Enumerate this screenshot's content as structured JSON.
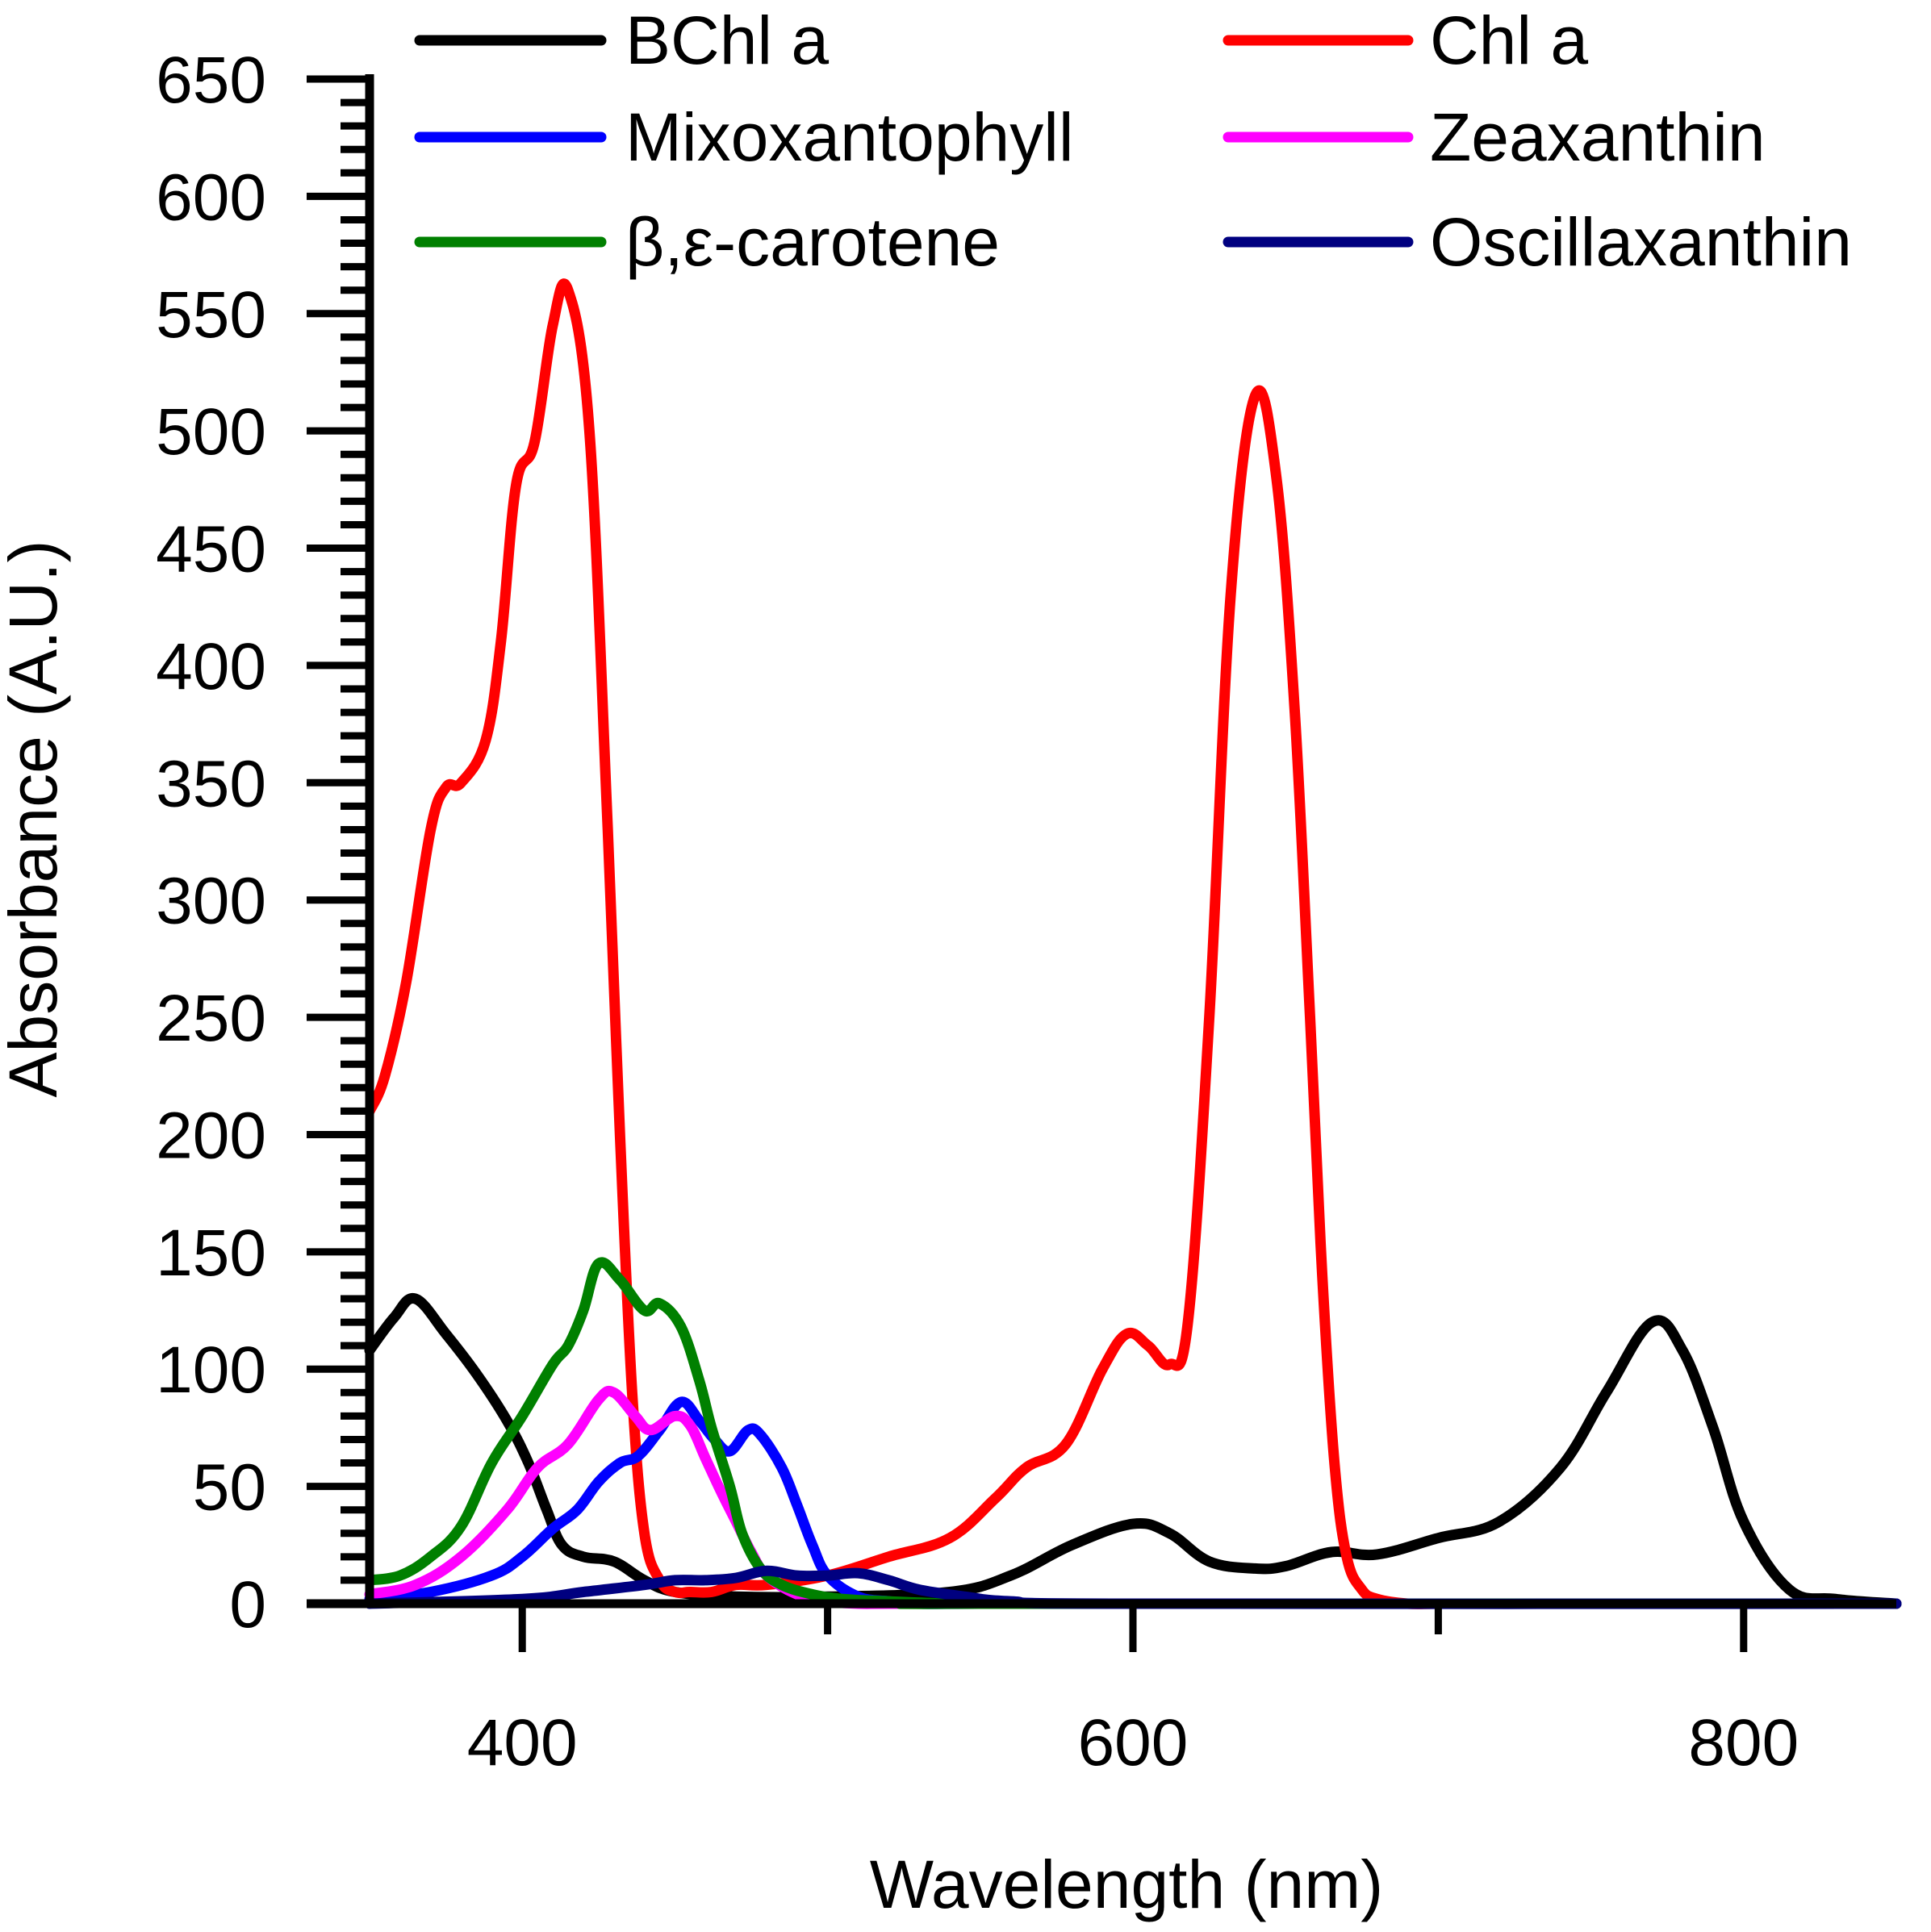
{
  "chart_data": {
    "type": "line",
    "title": "",
    "xlabel": "Wavelength (nm)",
    "ylabel": "Absorbance (A.U.)",
    "xlim": [
      350,
      850
    ],
    "ylim": [
      0,
      650
    ],
    "xticks": [
      400,
      600,
      800
    ],
    "xtick_labels": [
      "400",
      "600",
      "800"
    ],
    "xminor_ticks": [
      500,
      700
    ],
    "yticks": [
      0,
      50,
      100,
      150,
      200,
      250,
      300,
      350,
      400,
      450,
      500,
      550,
      600,
      650
    ],
    "ytick_labels": [
      "0",
      "50",
      "100",
      "150",
      "200",
      "250",
      "300",
      "350",
      "400",
      "450",
      "500",
      "550",
      "600",
      "650"
    ],
    "legend_position": "top",
    "grid": false,
    "series": [
      {
        "name": "BChl a",
        "color": "#000000",
        "x": [
          350,
          358,
          365,
          375,
          385,
          395,
          402,
          408,
          413,
          420,
          430,
          440,
          450,
          470,
          500,
          540,
          560,
          580,
          600,
          612,
          625,
          640,
          650,
          665,
          680,
          700,
          720,
          740,
          755,
          770,
          780,
          790,
          800,
          815,
          830,
          850
        ],
        "y": [
          108,
          122,
          130,
          115,
          98,
          78,
          60,
          40,
          25,
          20,
          18,
          10,
          5,
          3,
          3,
          5,
          12,
          25,
          34,
          30,
          18,
          15,
          16,
          22,
          21,
          28,
          35,
          58,
          90,
          120,
          108,
          75,
          35,
          6,
          2,
          0
        ]
      },
      {
        "name": "Chl a",
        "color": "#ff0000",
        "x": [
          350,
          355,
          362,
          370,
          375,
          380,
          388,
          393,
          398,
          404,
          410,
          415,
          422,
          428,
          432,
          436,
          440,
          445,
          450,
          455,
          462,
          470,
          480,
          500,
          520,
          540,
          555,
          565,
          578,
          590,
          598,
          605,
          612,
          618,
          625,
          632,
          640,
          647,
          653,
          658,
          662,
          666,
          670,
          675,
          680,
          690,
          700,
          720,
          750,
          850
        ],
        "y": [
          210,
          225,
          265,
          330,
          348,
          350,
          368,
          410,
          477,
          495,
          545,
          560,
          500,
          330,
          200,
          90,
          30,
          10,
          5,
          5,
          5,
          8,
          8,
          12,
          20,
          28,
          45,
          58,
          68,
          100,
          115,
          110,
          102,
          120,
          250,
          430,
          515,
          480,
          380,
          250,
          140,
          60,
          20,
          6,
          2,
          0,
          0,
          0,
          0,
          0
        ]
      },
      {
        "name": "Mixoxantophyll",
        "color": "#0000ff",
        "x": [
          350,
          370,
          390,
          400,
          410,
          418,
          425,
          432,
          438,
          445,
          452,
          458,
          463,
          468,
          474,
          478,
          485,
          490,
          495,
          500,
          510,
          520,
          530,
          550,
          600,
          850
        ],
        "y": [
          2,
          5,
          12,
          20,
          32,
          40,
          52,
          60,
          63,
          74,
          86,
          78,
          70,
          65,
          74,
          72,
          58,
          42,
          25,
          12,
          3,
          1,
          0,
          0,
          0,
          0
        ]
      },
      {
        "name": "Zeaxanthin",
        "color": "#ff00ff",
        "x": [
          350,
          365,
          380,
          395,
          405,
          415,
          425,
          430,
          437,
          442,
          450,
          455,
          460,
          465,
          470,
          475,
          480,
          490,
          500,
          510,
          520,
          550,
          850
        ],
        "y": [
          4,
          8,
          20,
          40,
          58,
          68,
          87,
          90,
          80,
          74,
          80,
          76,
          62,
          48,
          35,
          22,
          12,
          4,
          1,
          0,
          0,
          0,
          0
        ]
      },
      {
        "name": "β,ε-carotene",
        "color": "#008000",
        "x": [
          350,
          360,
          370,
          380,
          390,
          400,
          410,
          415,
          420,
          425,
          432,
          440,
          445,
          452,
          458,
          462,
          468,
          472,
          478,
          485,
          495,
          505,
          520,
          540,
          550,
          850
        ],
        "y": [
          10,
          12,
          20,
          33,
          60,
          80,
          102,
          110,
          125,
          145,
          138,
          125,
          128,
          118,
          95,
          75,
          50,
          30,
          15,
          8,
          4,
          2,
          1,
          0,
          0,
          0
        ]
      },
      {
        "name": "Oscillaxanthin",
        "color": "#000080",
        "x": [
          350,
          400,
          420,
          440,
          450,
          460,
          470,
          480,
          490,
          500,
          510,
          520,
          530,
          545,
          560,
          600,
          850
        ],
        "y": [
          0,
          2,
          5,
          8,
          10,
          10,
          11,
          14,
          12,
          12,
          13,
          10,
          6,
          3,
          1,
          0,
          0
        ]
      }
    ]
  }
}
